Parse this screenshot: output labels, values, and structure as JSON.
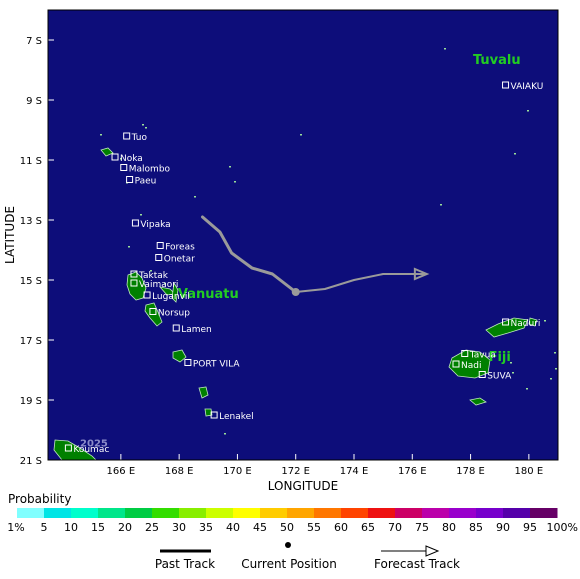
{
  "map": {
    "x_axis_title": "LONGITUDE",
    "y_axis_title": "LATITUDE",
    "lon_ticks": [
      "166 E",
      "168 E",
      "170 E",
      "172 E",
      "174 E",
      "176 E",
      "178 E",
      "180 E"
    ],
    "lat_ticks": [
      "7 S",
      "9 S",
      "11 S",
      "13 S",
      "15 S",
      "17 S",
      "19 S",
      "21 S"
    ],
    "ocean_color": "#0d0d7a",
    "land_color": "#008000",
    "country_labels": [
      "Tuvalu",
      "Vanuatu",
      "Fiji"
    ],
    "year_watermark": "2025",
    "places": [
      {
        "name": "Tuo",
        "lon": 166.2,
        "lat": -10.2
      },
      {
        "name": "Noka",
        "lon": 165.8,
        "lat": -10.9
      },
      {
        "name": "Malombo",
        "lon": 166.1,
        "lat": -11.25
      },
      {
        "name": "Paeu",
        "lon": 166.3,
        "lat": -11.65
      },
      {
        "name": "Vipaka",
        "lon": 166.5,
        "lat": -13.1
      },
      {
        "name": "Foreas",
        "lon": 167.35,
        "lat": -13.85
      },
      {
        "name": "Onetar",
        "lon": 167.3,
        "lat": -14.25
      },
      {
        "name": "Taktak",
        "lon": 166.45,
        "lat": -14.8
      },
      {
        "name": "Vaimaori",
        "lon": 166.45,
        "lat": -15.1
      },
      {
        "name": "Luganvil",
        "lon": 166.9,
        "lat": -15.5
      },
      {
        "name": "Norsup",
        "lon": 167.1,
        "lat": -16.05
      },
      {
        "name": "Lamen",
        "lon": 167.9,
        "lat": -16.6
      },
      {
        "name": "PORT VILA",
        "lon": 168.3,
        "lat": -17.75
      },
      {
        "name": "Lenakel",
        "lon": 169.2,
        "lat": -19.5
      },
      {
        "name": "Koumac",
        "lon": 164.2,
        "lat": -20.6
      },
      {
        "name": "VAIAKU",
        "lon": 179.2,
        "lat": -8.5
      },
      {
        "name": "Naduri",
        "lon": 179.2,
        "lat": -16.4
      },
      {
        "name": "Tavua",
        "lon": 177.8,
        "lat": -17.45
      },
      {
        "name": "Nadi",
        "lon": 177.5,
        "lat": -17.8
      },
      {
        "name": "SUVA",
        "lon": 178.4,
        "lat": -18.15
      }
    ],
    "past_track": [
      [
        168.8,
        -12.9
      ],
      [
        169.4,
        -13.4
      ],
      [
        169.8,
        -14.1
      ],
      [
        170.5,
        -14.6
      ],
      [
        171.2,
        -14.8
      ],
      [
        172.0,
        -15.4
      ]
    ],
    "current_position": [
      172.0,
      -15.4
    ],
    "forecast_track": [
      [
        172.0,
        -15.4
      ],
      [
        173.0,
        -15.3
      ],
      [
        174.0,
        -15.0
      ],
      [
        175.0,
        -14.8
      ],
      [
        176.0,
        -14.8
      ],
      [
        176.5,
        -14.8
      ]
    ]
  },
  "legend": {
    "title": "Probability",
    "labels": [
      "1%",
      "5",
      "10",
      "15",
      "20",
      "25",
      "30",
      "35",
      "40",
      "45",
      "50",
      "55",
      "60",
      "65",
      "70",
      "75",
      "80",
      "85",
      "90",
      "95",
      "100%"
    ],
    "colors": [
      "#80ffff",
      "#00e5e5",
      "#00ffcc",
      "#00e68a",
      "#00cc44",
      "#33dd00",
      "#88ee00",
      "#ccff00",
      "#ffff00",
      "#ffcc00",
      "#ffa500",
      "#ff7700",
      "#ff4400",
      "#ee1111",
      "#cc0066",
      "#bb00aa",
      "#9900cc",
      "#7700cc",
      "#5500aa",
      "#660066"
    ],
    "key_past": "Past Track",
    "key_current": "Current Position",
    "key_forecast": "Forecast Track"
  }
}
